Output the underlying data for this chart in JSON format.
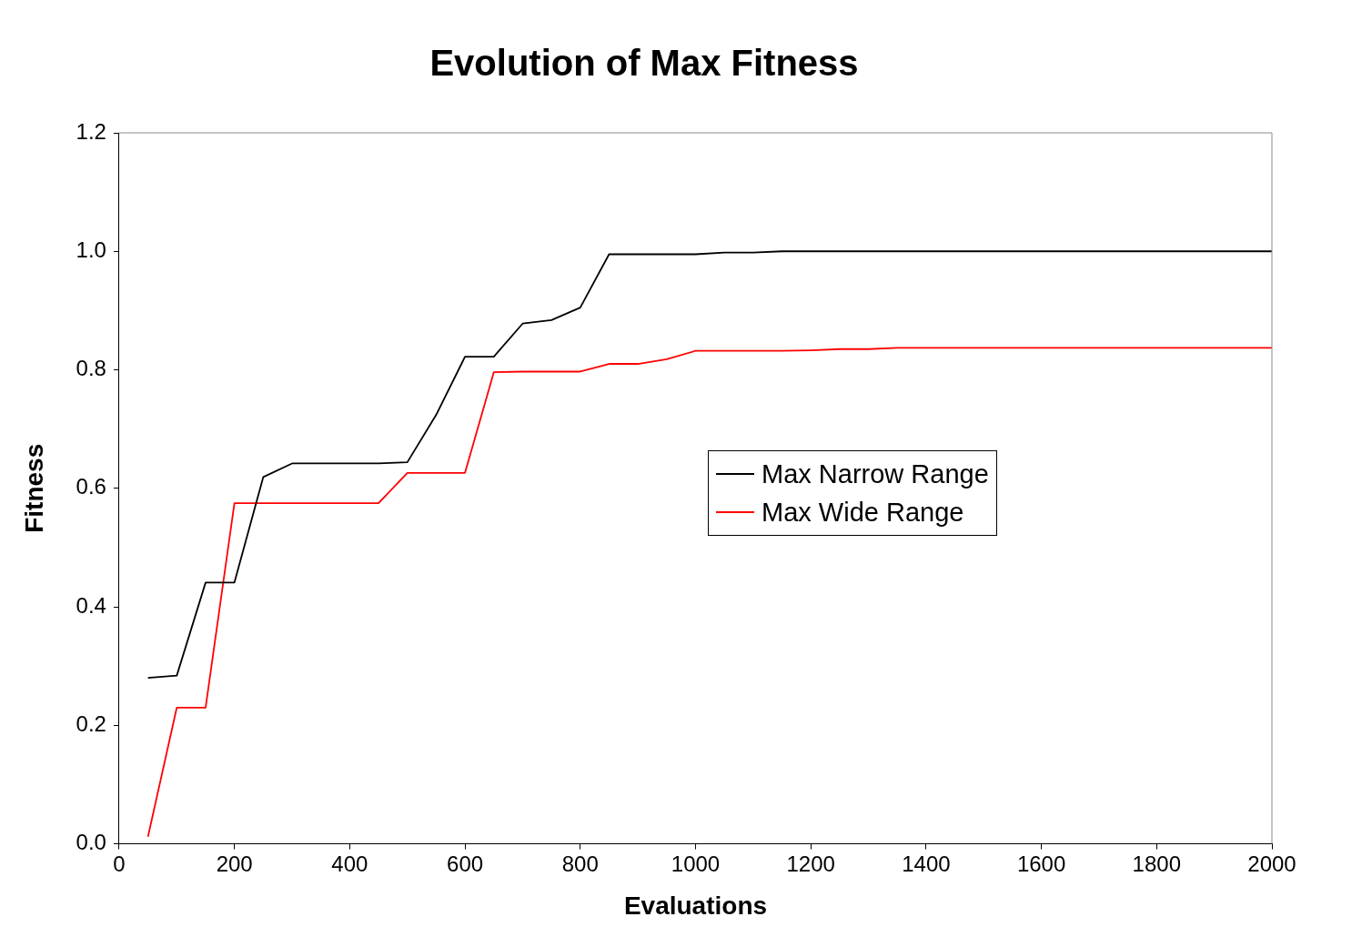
{
  "chart_data": {
    "type": "line",
    "title": "Evolution of Max Fitness",
    "xlabel": "Evaluations",
    "ylabel": "Fitness",
    "x": [
      50,
      100,
      150,
      200,
      250,
      300,
      350,
      400,
      450,
      500,
      550,
      600,
      650,
      700,
      750,
      800,
      850,
      900,
      950,
      1000,
      1050,
      1100,
      1150,
      1200,
      1250,
      1300,
      1350,
      1400,
      1450,
      1500,
      1550,
      1600,
      1650,
      1700,
      1750,
      1800,
      1850,
      1900,
      1950,
      2000
    ],
    "series": [
      {
        "name": "Max Narrow Range",
        "color": "#000000",
        "values": [
          0.28,
          0.284,
          0.441,
          0.441,
          0.619,
          0.642,
          0.642,
          0.642,
          0.642,
          0.644,
          0.724,
          0.822,
          0.822,
          0.878,
          0.884,
          0.905,
          0.995,
          0.995,
          0.995,
          0.995,
          0.998,
          0.998,
          1.0,
          1.0,
          1.0,
          1.0,
          1.0,
          1.0,
          1.0,
          1.0,
          1.0,
          1.0,
          1.0,
          1.0,
          1.0,
          1.0,
          1.0,
          1.0,
          1.0,
          1.0
        ]
      },
      {
        "name": "Max Wide Range",
        "color": "#ff0000",
        "values": [
          0.012,
          0.23,
          0.23,
          0.575,
          0.575,
          0.575,
          0.575,
          0.575,
          0.575,
          0.626,
          0.626,
          0.626,
          0.796,
          0.797,
          0.797,
          0.797,
          0.81,
          0.81,
          0.818,
          0.832,
          0.832,
          0.832,
          0.832,
          0.833,
          0.835,
          0.835,
          0.837,
          0.837,
          0.837,
          0.837,
          0.837,
          0.837,
          0.837,
          0.837,
          0.837,
          0.837,
          0.837,
          0.837,
          0.837,
          0.837
        ]
      }
    ],
    "xlim": [
      0,
      2000
    ],
    "xticks": [
      0,
      200,
      400,
      600,
      800,
      1000,
      1200,
      1400,
      1600,
      1800,
      2000
    ],
    "ylim": [
      0,
      1.2
    ],
    "yticks": [
      {
        "value": 0,
        "label": "0.0"
      },
      {
        "value": 0.2,
        "label": "0.2"
      },
      {
        "value": 0.4,
        "label": "0.4"
      },
      {
        "value": 0.6,
        "label": "0.6"
      },
      {
        "value": 0.8,
        "label": "0.8"
      },
      {
        "value": 1,
        "label": "1.0"
      },
      {
        "value": 1.2,
        "label": "1.2"
      }
    ],
    "grid": false,
    "legend": "right",
    "marker": "none",
    "line_style": "solid"
  }
}
